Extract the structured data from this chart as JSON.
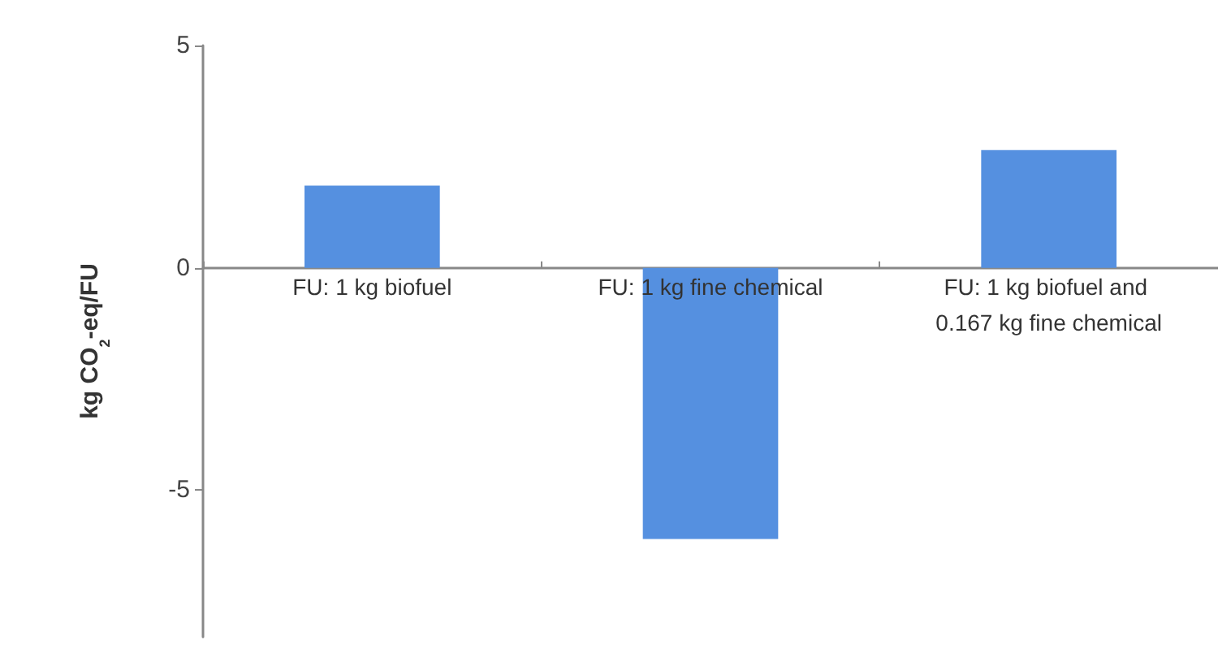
{
  "chart_data": {
    "type": "bar",
    "categories": [
      "FU: 1 kg biofuel",
      "FU: 1 kg fine chemical",
      "FU: 1 kg biofuel and 0.167 kg fine chemical"
    ],
    "values": [
      1.85,
      -6.1,
      2.65
    ],
    "color": "#5590e0",
    "ylabel": "kg CO$_{2}$-eq/FU",
    "ylim": [
      -8.3,
      5
    ],
    "yticks": [
      -5,
      0,
      5
    ]
  }
}
